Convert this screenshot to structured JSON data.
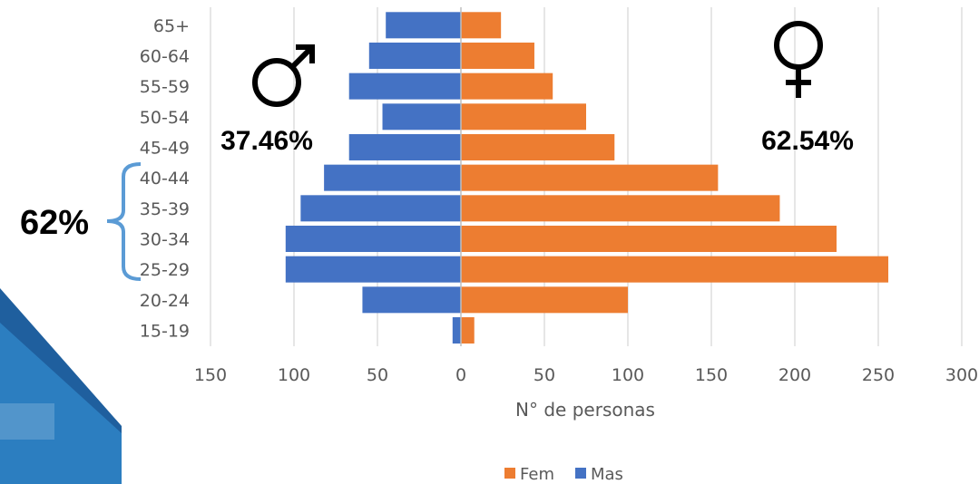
{
  "colors": {
    "fem": "#ED7D31",
    "mas": "#4472C4",
    "grid": "#D9D9D9",
    "bracket": "#5B9BD5",
    "decor_dark": "#1f5f9e",
    "decor_light": "#2f84c6"
  },
  "annotations": {
    "male_pct": "37.46%",
    "female_pct": "62.54%",
    "bracket_pct": "62%",
    "male_symbol": "♂",
    "female_symbol": "♀"
  },
  "chart_data": {
    "type": "bar",
    "orientation": "horizontal",
    "layout": "population-pyramid",
    "categories": [
      "15-19",
      "20-24",
      "25-29",
      "30-34",
      "35-39",
      "40-44",
      "45-49",
      "50-54",
      "55-59",
      "60-64",
      "65+"
    ],
    "series": [
      {
        "name": "Fem",
        "side": "right",
        "values": [
          8,
          100,
          256,
          225,
          191,
          154,
          92,
          75,
          55,
          44,
          24
        ]
      },
      {
        "name": "Mas",
        "side": "left",
        "values": [
          5,
          59,
          105,
          105,
          96,
          82,
          67,
          47,
          67,
          55,
          45
        ]
      }
    ],
    "xlabel": "N° de personas",
    "x_ticks": [
      {
        "value": -150,
        "label": "150"
      },
      {
        "value": -100,
        "label": "100"
      },
      {
        "value": -50,
        "label": "50"
      },
      {
        "value": 0,
        "label": "0"
      },
      {
        "value": 50,
        "label": "50"
      },
      {
        "value": 100,
        "label": "100"
      },
      {
        "value": 150,
        "label": "150"
      },
      {
        "value": 200,
        "label": "200"
      },
      {
        "value": 250,
        "label": "250"
      },
      {
        "value": 300,
        "label": "300"
      }
    ],
    "xlim": [
      -150,
      300
    ],
    "grid": true,
    "legend": {
      "position": "bottom",
      "entries": [
        {
          "label": "Fem",
          "series": "Fem"
        },
        {
          "label": "Mas",
          "series": "Mas"
        }
      ]
    },
    "bracket_categories": [
      "25-29",
      "30-34",
      "35-39",
      "40-44"
    ]
  }
}
